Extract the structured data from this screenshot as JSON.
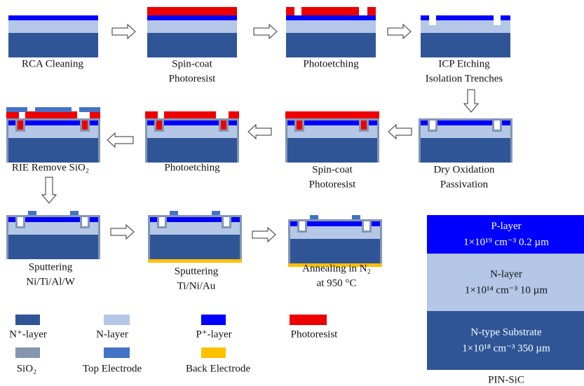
{
  "steps": [
    {
      "lines": [
        "RCA Cleaning"
      ]
    },
    {
      "lines": [
        "Spin-coat",
        "Photoresist"
      ]
    },
    {
      "lines": [
        "Photoetching"
      ]
    },
    {
      "lines": [
        "ICP Etching",
        "Isolation Trenches"
      ]
    },
    {
      "lines": [
        "RIE Remove SiO₂"
      ]
    },
    {
      "lines": [
        "Photoetching"
      ]
    },
    {
      "lines": [
        "Spin-coat",
        "Photoresist"
      ]
    },
    {
      "lines": [
        "Dry Oxidation",
        "Passivation"
      ]
    },
    {
      "lines": [
        "Sputtering",
        "Ni/Ti/Al/W"
      ]
    },
    {
      "lines": [
        "Sputtering",
        "Ti/Ni/Au"
      ]
    },
    {
      "lines": [
        "Annealing in N₂",
        "at 950 °C"
      ]
    }
  ],
  "legend": [
    {
      "label": "N⁺-layer",
      "color": "#2f5597"
    },
    {
      "label": "N-layer",
      "color": "#b4c7e7"
    },
    {
      "label": "P⁺-layer",
      "color": "#0000ff"
    },
    {
      "label": "Photoresist",
      "color": "#ee0000"
    },
    {
      "label": "SiO₂",
      "color": "#8496b0"
    },
    {
      "label": "Top Electrode",
      "color": "#4472c4"
    },
    {
      "label": "Back Electrode",
      "color": "#ffc000"
    }
  ],
  "stack": {
    "layers": [
      {
        "name": "P-layer",
        "spec": "1×10¹⁹ cm⁻³ 0.2 µm"
      },
      {
        "name": "N-layer",
        "spec": "1×10¹⁴ cm⁻³ 10 µm"
      },
      {
        "name": "N-type Substrate",
        "spec": "1×10¹⁸ cm⁻³ 350 µm"
      }
    ],
    "caption": "PIN-SiC"
  }
}
